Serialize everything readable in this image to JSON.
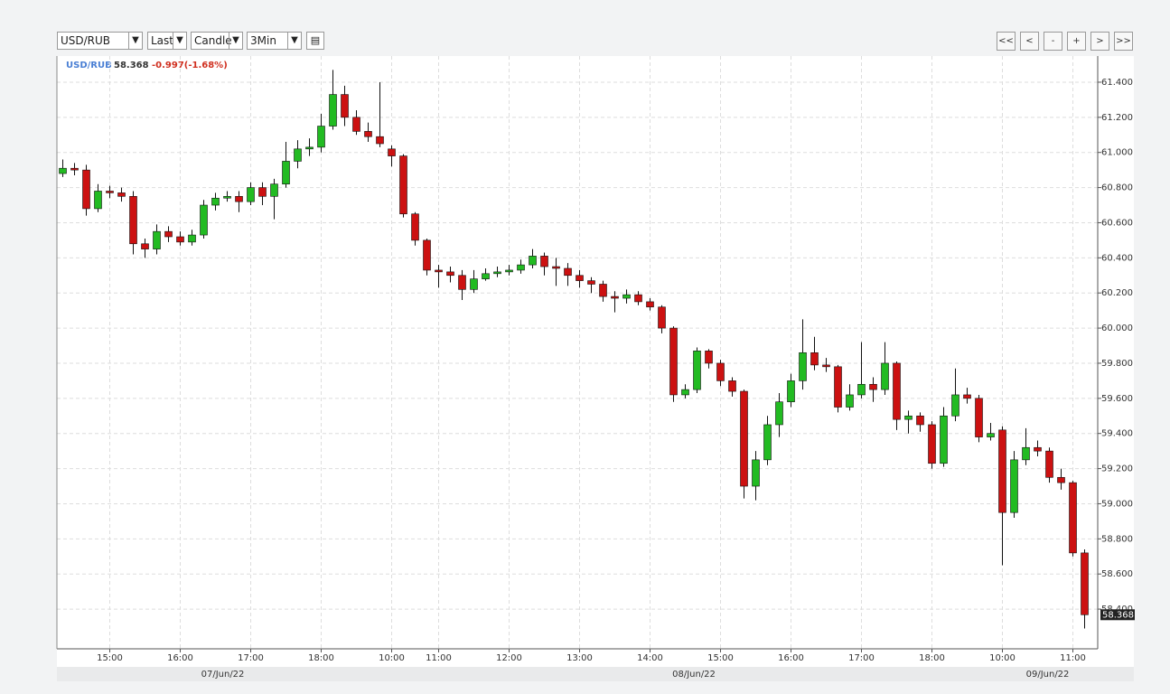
{
  "toolbar": {
    "symbol": "USD/RUB",
    "field": "Last",
    "chart_style": "Candle",
    "interval": "3Min",
    "nav": [
      "<<",
      "<",
      "-",
      "+",
      ">",
      ">>"
    ]
  },
  "chart_data": {
    "type": "candlestick",
    "symbol": "USD/RUB",
    "last": 58.368,
    "change": "-0.997(-1.68%)",
    "dates": [
      "07/Jun/22",
      "08/Jun/22",
      "09/Jun/22"
    ],
    "categories": [
      null,
      null,
      null,
      null,
      "15:00",
      null,
      null,
      null,
      null,
      null,
      "16:00",
      null,
      null,
      null,
      null,
      null,
      "17:00",
      null,
      null,
      null,
      null,
      null,
      "18:00",
      null,
      null,
      null,
      null,
      null,
      "10:00",
      null,
      null,
      null,
      "11:00",
      null,
      null,
      null,
      null,
      null,
      "12:00",
      null,
      null,
      null,
      null,
      null,
      "13:00",
      null,
      null,
      null,
      null,
      null,
      "14:00",
      null,
      null,
      null,
      null,
      null,
      "15:00",
      null,
      null,
      null,
      null,
      null,
      "16:00",
      null,
      null,
      null,
      null,
      null,
      "17:00",
      null,
      null,
      null,
      null,
      null,
      "18:00",
      null,
      null,
      null,
      null,
      null,
      "10:00",
      null,
      null,
      null,
      null,
      null,
      "11:00",
      null
    ],
    "open": [
      60.88,
      60.91,
      60.9,
      60.68,
      60.78,
      60.77,
      60.75,
      60.48,
      60.45,
      60.55,
      60.52,
      60.49,
      60.53,
      60.7,
      60.74,
      60.75,
      60.72,
      60.8,
      60.75,
      60.82,
      60.95,
      61.02,
      61.03,
      61.15,
      61.33,
      61.2,
      61.12,
      61.09,
      61.02,
      60.98,
      60.65,
      60.5,
      60.33,
      60.32,
      60.3,
      60.22,
      60.28,
      60.31,
      60.32,
      60.33,
      60.36,
      60.41,
      60.35,
      60.34,
      60.3,
      60.27,
      60.25,
      60.18,
      60.17,
      60.19,
      60.15,
      60.12,
      60.0,
      59.62,
      59.65,
      59.87,
      59.8,
      59.7,
      59.64,
      59.1,
      59.25,
      59.45,
      59.58,
      59.7,
      59.86,
      59.79,
      59.78,
      59.55,
      59.62,
      59.68,
      59.65,
      59.8,
      59.48,
      59.5,
      59.45,
      59.23,
      59.5,
      59.62,
      59.6,
      59.38,
      59.42,
      58.95,
      59.25,
      59.32,
      59.3,
      59.15,
      59.12,
      58.72
    ],
    "high": [
      60.96,
      60.94,
      60.93,
      60.82,
      60.81,
      60.8,
      60.78,
      60.51,
      60.59,
      60.58,
      60.55,
      60.56,
      60.73,
      60.77,
      60.78,
      60.78,
      60.83,
      60.83,
      60.85,
      61.06,
      61.07,
      61.08,
      61.22,
      61.47,
      61.38,
      61.24,
      61.17,
      61.4,
      61.04,
      60.99,
      60.66,
      60.51,
      60.36,
      60.35,
      60.33,
      60.33,
      60.34,
      60.35,
      60.36,
      60.39,
      60.45,
      60.43,
      60.4,
      60.37,
      60.33,
      60.29,
      60.27,
      60.21,
      60.22,
      60.21,
      60.17,
      60.13,
      60.01,
      59.68,
      59.89,
      59.88,
      59.82,
      59.72,
      59.65,
      59.3,
      59.5,
      59.63,
      59.74,
      60.05,
      59.95,
      59.83,
      59.79,
      59.68,
      59.92,
      59.72,
      59.92,
      59.81,
      59.53,
      59.52,
      59.47,
      59.55,
      59.77,
      59.66,
      59.62,
      59.46,
      59.44,
      59.3,
      59.43,
      59.36,
      59.32,
      59.2,
      59.13,
      58.74
    ],
    "low": [
      60.86,
      60.87,
      60.64,
      60.66,
      60.74,
      60.72,
      60.42,
      60.4,
      60.42,
      60.49,
      60.47,
      60.47,
      60.51,
      60.67,
      60.72,
      60.66,
      60.7,
      60.7,
      60.62,
      60.8,
      60.91,
      60.98,
      61.0,
      61.13,
      61.15,
      61.1,
      61.06,
      61.03,
      60.92,
      60.63,
      60.47,
      60.3,
      60.23,
      60.26,
      60.16,
      60.2,
      60.27,
      60.29,
      60.3,
      60.31,
      60.34,
      60.3,
      60.24,
      60.24,
      60.23,
      60.2,
      60.15,
      60.09,
      60.14,
      60.13,
      60.1,
      59.97,
      59.58,
      59.6,
      59.63,
      59.77,
      59.67,
      59.61,
      59.03,
      59.02,
      59.22,
      59.38,
      59.55,
      59.65,
      59.76,
      59.75,
      59.52,
      59.53,
      59.6,
      59.58,
      59.62,
      59.42,
      59.4,
      59.41,
      59.2,
      59.21,
      59.47,
      59.57,
      59.35,
      59.36,
      58.65,
      58.92,
      59.22,
      59.27,
      59.12,
      59.08,
      58.7,
      58.29
    ],
    "close": [
      60.91,
      60.9,
      60.68,
      60.78,
      60.77,
      60.75,
      60.48,
      60.45,
      60.55,
      60.52,
      60.49,
      60.53,
      60.7,
      60.74,
      60.75,
      60.72,
      60.8,
      60.75,
      60.82,
      60.95,
      61.02,
      61.03,
      61.15,
      61.33,
      61.2,
      61.12,
      61.09,
      61.05,
      60.98,
      60.65,
      60.5,
      60.33,
      60.32,
      60.3,
      60.22,
      60.28,
      60.31,
      60.32,
      60.33,
      60.36,
      60.41,
      60.35,
      60.34,
      60.3,
      60.27,
      60.25,
      60.18,
      60.17,
      60.19,
      60.15,
      60.12,
      60.0,
      59.62,
      59.65,
      59.87,
      59.8,
      59.7,
      59.64,
      59.1,
      59.25,
      59.45,
      59.58,
      59.7,
      59.86,
      59.79,
      59.78,
      59.55,
      59.62,
      59.68,
      59.65,
      59.8,
      59.48,
      59.5,
      59.45,
      59.23,
      59.5,
      59.62,
      59.6,
      59.38,
      59.4,
      58.95,
      59.25,
      59.32,
      59.3,
      59.15,
      59.12,
      58.72,
      58.368
    ],
    "up_color": "#22bb22",
    "down_color": "#cc1111",
    "ylim": [
      58.174,
      61.549
    ],
    "yticks": [
      {
        "value": 58.4,
        "label": "58.400"
      },
      {
        "value": 58.6,
        "label": "58.600"
      },
      {
        "value": 58.8,
        "label": "58.800"
      },
      {
        "value": 59.0,
        "label": "59.000"
      },
      {
        "value": 59.2,
        "label": "59.200"
      },
      {
        "value": 59.4,
        "label": "59.400"
      },
      {
        "value": 59.6,
        "label": "59.600"
      },
      {
        "value": 59.8,
        "label": "59.800"
      },
      {
        "value": 60.0,
        "label": "60.000"
      },
      {
        "value": 60.2,
        "label": "60.200"
      },
      {
        "value": 60.4,
        "label": "60.400"
      },
      {
        "value": 60.6,
        "label": "60.600"
      },
      {
        "value": 60.8,
        "label": "60.800"
      },
      {
        "value": 61.0,
        "label": "61.000"
      },
      {
        "value": 61.2,
        "label": "61.200"
      },
      {
        "value": 61.4,
        "label": "61.400"
      }
    ],
    "grid": true
  }
}
